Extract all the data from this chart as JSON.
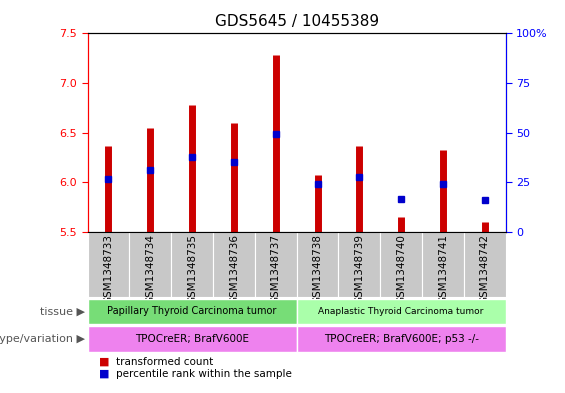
{
  "title": "GDS5645 / 10455389",
  "samples": [
    "GSM1348733",
    "GSM1348734",
    "GSM1348735",
    "GSM1348736",
    "GSM1348737",
    "GSM1348738",
    "GSM1348739",
    "GSM1348740",
    "GSM1348741",
    "GSM1348742"
  ],
  "bar_top": [
    6.37,
    6.55,
    6.78,
    6.6,
    7.28,
    6.07,
    6.37,
    5.65,
    6.32,
    5.6
  ],
  "bar_bottom": [
    5.5,
    5.5,
    5.5,
    5.5,
    5.5,
    5.5,
    5.5,
    5.5,
    5.5,
    5.5
  ],
  "blue_dot_y": [
    6.03,
    6.12,
    6.25,
    6.2,
    6.49,
    5.98,
    6.05,
    5.83,
    5.98,
    5.82
  ],
  "ylim": [
    5.5,
    7.5
  ],
  "y2lim": [
    0,
    100
  ],
  "yticks": [
    5.5,
    6.0,
    6.5,
    7.0,
    7.5
  ],
  "y2ticks": [
    0,
    25,
    50,
    75,
    100
  ],
  "y2ticklabels": [
    "0",
    "25",
    "50",
    "75",
    "100%"
  ],
  "bar_color": "#cc0000",
  "dot_color": "#0000cc",
  "tissue_labels": [
    "Papillary Thyroid Carcinoma tumor",
    "Anaplastic Thyroid Carcinoma tumor"
  ],
  "tissue_color": "#77dd77",
  "tissue_split": 5,
  "genotype_labels": [
    "TPOCreER; BrafV600E",
    "TPOCreER; BrafV600E; p53 -/-"
  ],
  "genotype_color": "#ee82ee",
  "xticklabel_bg": "#c8c8c8",
  "legend_red": "transformed count",
  "legend_blue": "percentile rank within the sample",
  "tissue_row_label": "tissue",
  "genotype_row_label": "genotype/variation"
}
